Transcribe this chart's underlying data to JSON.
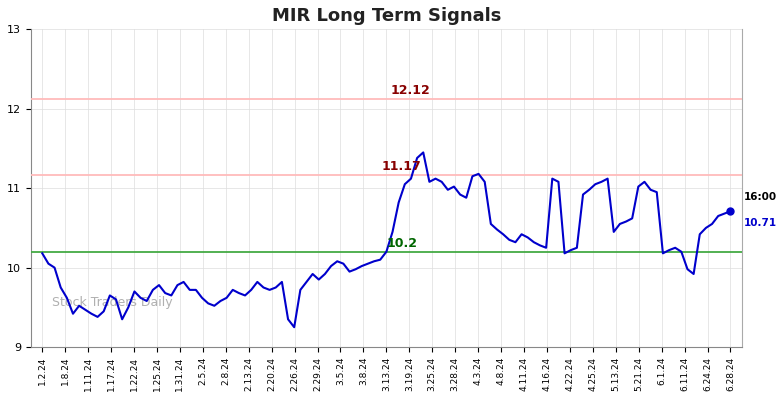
{
  "title": "MIR Long Term Signals",
  "x_labels": [
    "1.2.24",
    "1.8.24",
    "1.11.24",
    "1.17.24",
    "1.22.24",
    "1.25.24",
    "1.31.24",
    "2.5.24",
    "2.8.24",
    "2.13.24",
    "2.20.24",
    "2.26.24",
    "2.29.24",
    "3.5.24",
    "3.8.24",
    "3.13.24",
    "3.19.24",
    "3.25.24",
    "3.28.24",
    "4.3.24",
    "4.8.24",
    "4.11.24",
    "4.16.24",
    "4.22.24",
    "4.25.24",
    "5.13.24",
    "5.21.24",
    "6.1.24",
    "6.11.24",
    "6.24.24",
    "6.28.24"
  ],
  "hline_green": 10.2,
  "hline_red1": 11.17,
  "hline_red2": 12.12,
  "line_color": "#0000cc",
  "hline_green_color": "#44aa44",
  "hline_red_color": "#ffbbbb",
  "annotation_green_color": "#006600",
  "annotation_red_color": "#880000",
  "annotation_green_text": "10.2",
  "annotation_red1_text": "11.17",
  "annotation_red2_text": "12.12",
  "annotation_time_text": "16:00",
  "annotation_last_text": "10.71",
  "last_dot_color": "#0000cc",
  "watermark": "Stock Traders Daily",
  "watermark_color": "#b0b0b0",
  "ylim": [
    9,
    13
  ],
  "yticks": [
    9,
    10,
    11,
    12,
    13
  ],
  "background_color": "#ffffff",
  "grid_color": "#dddddd",
  "y_values": [
    10.18,
    10.05,
    10.0,
    9.75,
    9.62,
    9.42,
    9.52,
    9.47,
    9.42,
    9.38,
    9.45,
    9.65,
    9.6,
    9.35,
    9.5,
    9.7,
    9.62,
    9.58,
    9.72,
    9.78,
    9.68,
    9.65,
    9.78,
    9.82,
    9.72,
    9.72,
    9.62,
    9.55,
    9.52,
    9.58,
    9.62,
    9.72,
    9.68,
    9.65,
    9.72,
    9.82,
    9.75,
    9.72,
    9.75,
    9.82,
    9.35,
    9.25,
    9.72,
    9.82,
    9.92,
    9.85,
    9.92,
    10.02,
    10.08,
    10.05,
    9.95,
    9.98,
    10.02,
    10.05,
    10.08,
    10.1,
    10.2,
    10.45,
    10.82,
    11.05,
    11.12,
    11.38,
    11.45,
    11.08,
    11.12,
    11.08,
    10.98,
    11.02,
    10.92,
    10.88,
    11.15,
    11.18,
    11.08,
    10.55,
    10.48,
    10.42,
    10.35,
    10.32,
    10.42,
    10.38,
    10.32,
    10.28,
    10.25,
    11.12,
    11.08,
    10.18,
    10.22,
    10.25,
    10.92,
    10.98,
    11.05,
    11.08,
    11.12,
    10.45,
    10.55,
    10.58,
    10.62,
    11.02,
    11.08,
    10.98,
    10.95,
    10.18,
    10.22,
    10.25,
    10.2,
    9.98,
    9.92,
    10.42,
    10.5,
    10.55,
    10.65,
    10.68,
    10.71
  ]
}
